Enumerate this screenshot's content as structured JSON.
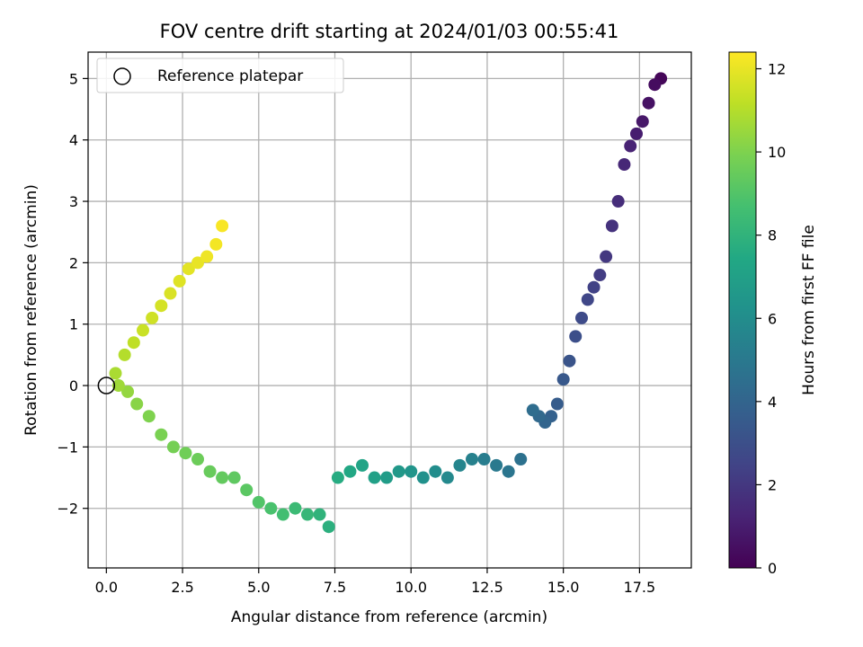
{
  "chart_data": {
    "type": "scatter",
    "title": "FOV centre drift starting at 2024/01/03 00:55:41",
    "xlabel": "Angular distance from reference (arcmin)",
    "ylabel": "Rotation from reference (arcmin)",
    "xlim": [
      -0.6,
      19.2
    ],
    "ylim": [
      -2.97,
      5.43
    ],
    "xticks": [
      0.0,
      2.5,
      5.0,
      7.5,
      10.0,
      12.5,
      15.0,
      17.5
    ],
    "xtick_labels": [
      "0.0",
      "2.5",
      "5.0",
      "7.5",
      "10.0",
      "12.5",
      "15.0",
      "17.5"
    ],
    "yticks": [
      -2,
      -1,
      0,
      1,
      2,
      3,
      4,
      5
    ],
    "ytick_labels": [
      "−2",
      "−1",
      "0",
      "1",
      "2",
      "3",
      "4",
      "5"
    ],
    "grid": true,
    "legend": {
      "placement": "upper-left",
      "entries": [
        "Reference platepar"
      ]
    },
    "colorbar": {
      "label": "Hours from first FF file",
      "range": [
        0,
        12.4
      ],
      "ticks": [
        0,
        2,
        4,
        6,
        8,
        10,
        12
      ],
      "tick_labels": [
        "0",
        "2",
        "4",
        "6",
        "8",
        "10",
        "12"
      ],
      "colormap": "viridis"
    },
    "reference_point": {
      "x": 0,
      "y": 0
    },
    "drift_path": {
      "description_hours_from_start": true,
      "x": [
        18.2,
        18.0,
        17.8,
        17.6,
        17.4,
        17.2,
        17.0,
        16.8,
        16.6,
        16.4,
        16.2,
        16.0,
        15.8,
        15.6,
        15.4,
        15.2,
        15.0,
        14.8,
        14.6,
        14.4,
        14.2,
        14.0,
        13.6,
        13.2,
        12.8,
        12.4,
        12.0,
        11.6,
        11.2,
        10.8,
        10.4,
        10.0,
        9.6,
        9.2,
        8.8,
        8.4,
        8.0,
        7.6,
        7.3,
        7.0,
        6.6,
        6.2,
        5.8,
        5.4,
        5.0,
        4.6,
        4.2,
        3.8,
        3.4,
        3.0,
        2.6,
        2.2,
        1.8,
        1.4,
        1.0,
        0.7,
        0.4,
        0.3,
        0.6,
        0.9,
        1.2,
        1.5,
        1.8,
        2.1,
        2.4,
        2.7,
        3.0,
        3.3,
        3.6,
        3.8
      ],
      "y": [
        5.0,
        4.9,
        4.6,
        4.3,
        4.1,
        3.9,
        3.6,
        3.0,
        2.6,
        2.1,
        1.8,
        1.6,
        1.4,
        1.1,
        0.8,
        0.4,
        0.1,
        -0.3,
        -0.5,
        -0.6,
        -0.5,
        -0.4,
        -1.2,
        -1.4,
        -1.3,
        -1.2,
        -1.2,
        -1.3,
        -1.5,
        -1.4,
        -1.5,
        -1.4,
        -1.4,
        -1.5,
        -1.5,
        -1.3,
        -1.4,
        -1.5,
        -2.3,
        -2.1,
        -2.1,
        -2.0,
        -2.1,
        -2.0,
        -1.9,
        -1.7,
        -1.5,
        -1.5,
        -1.4,
        -1.2,
        -1.1,
        -1.0,
        -0.8,
        -0.5,
        -0.3,
        -0.1,
        0.0,
        0.2,
        0.5,
        0.7,
        0.9,
        1.1,
        1.3,
        1.5,
        1.7,
        1.9,
        2.0,
        2.1,
        2.3,
        2.6
      ],
      "hours": [
        0.2,
        0.4,
        0.6,
        0.8,
        1.0,
        1.2,
        1.4,
        1.6,
        1.8,
        2.0,
        2.2,
        2.4,
        2.6,
        2.8,
        3.0,
        3.2,
        3.4,
        3.6,
        3.8,
        4.0,
        4.2,
        4.4,
        4.6,
        4.8,
        5.0,
        5.2,
        5.4,
        5.6,
        5.8,
        6.0,
        6.2,
        6.4,
        6.6,
        6.8,
        7.0,
        7.2,
        7.4,
        7.6,
        7.8,
        8.0,
        8.2,
        8.4,
        8.6,
        8.8,
        9.0,
        9.2,
        9.3,
        9.4,
        9.5,
        9.6,
        9.7,
        9.8,
        9.9,
        10.0,
        10.2,
        10.4,
        10.6,
        10.8,
        11.0,
        11.2,
        11.4,
        11.5,
        11.6,
        11.7,
        11.8,
        11.9,
        12.0,
        12.1,
        12.2,
        12.3
      ]
    }
  },
  "colors": {
    "grid": "#b0b0b0",
    "axes": "#000000",
    "reference_marker": "#000000"
  }
}
